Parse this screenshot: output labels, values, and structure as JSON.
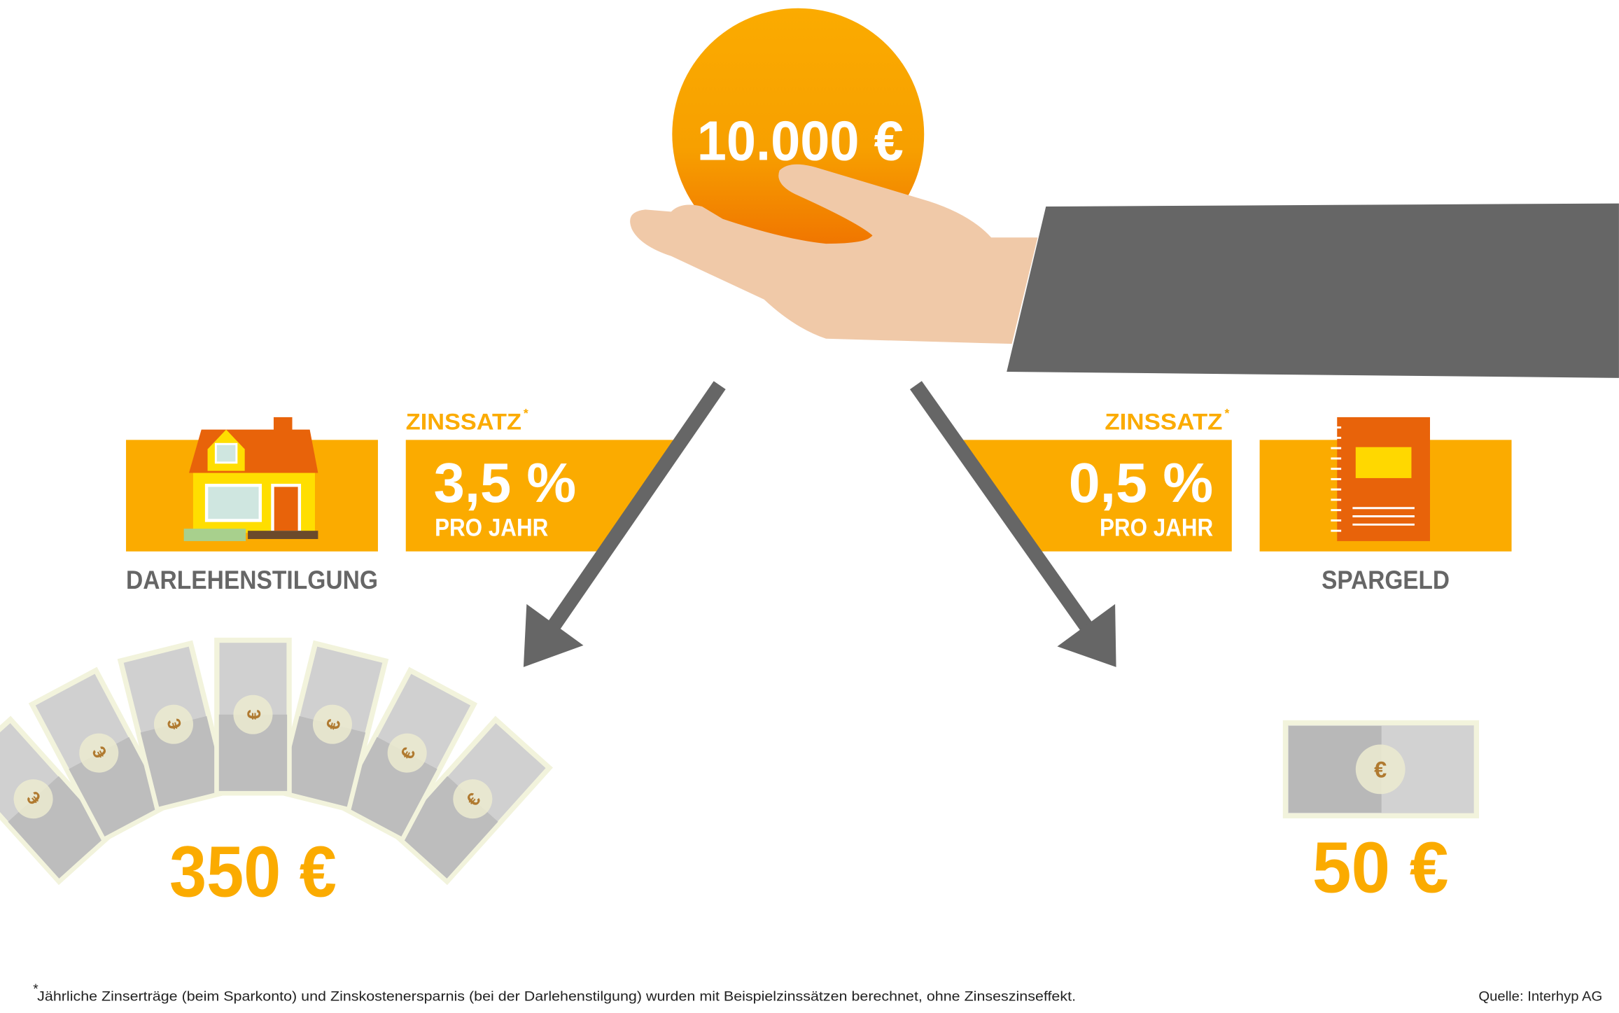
{
  "coin": {
    "amount": "10.000 €"
  },
  "left": {
    "label": "DARLEHENSTILGUNG",
    "rate_heading": "ZINSSATZ",
    "rate_asterisk": "*",
    "rate_value": "3,5 %",
    "rate_unit": "PRO JAHR",
    "result": "350 €",
    "icon": "house-icon"
  },
  "right": {
    "label": "SPARGELD",
    "rate_heading": "ZINSSATZ",
    "rate_asterisk": "*",
    "rate_value": "0,5 %",
    "rate_unit": "PRO JAHR",
    "result": "50 €",
    "icon": "savings-book-icon"
  },
  "bill_symbol": "€",
  "footer": {
    "footnote_marker": "*",
    "footnote": "Jährliche Zinserträge (beim Sparkonto) und Zinskostenersparnis (bei der Darlehenstilgung) wurden mit Beispielzinssätzen berechnet, ohne Zinseszinseffekt.",
    "source": "Quelle: Interhyp AG"
  },
  "colors": {
    "accent": "#fbab00",
    "coin_bottom": "#ef7000",
    "gray": "#666666",
    "skin": "#f0c9a8",
    "book": "#e8630a"
  }
}
